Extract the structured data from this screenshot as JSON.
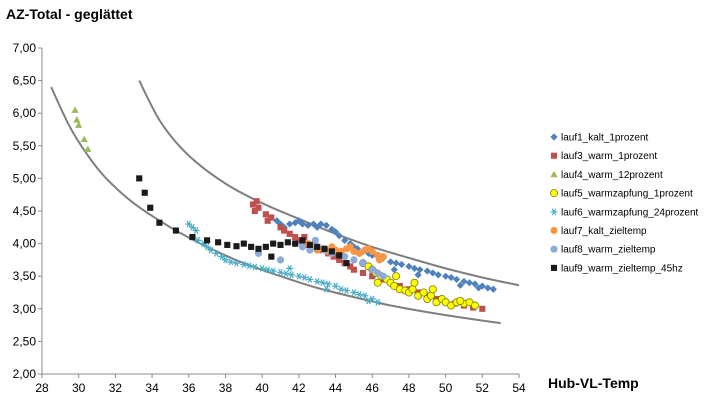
{
  "chart_data": {
    "type": "scatter",
    "title": "",
    "ylabel": "AZ-Total - geglättet",
    "xlabel": "Hub-VL-Temp",
    "xlim": [
      28,
      54
    ],
    "ylim": [
      2.0,
      7.0
    ],
    "x_ticks": [
      "28",
      "30",
      "32",
      "34",
      "36",
      "38",
      "40",
      "42",
      "44",
      "46",
      "48",
      "50",
      "52",
      "54"
    ],
    "y_ticks": [
      "2,00",
      "2,50",
      "3,00",
      "3,50",
      "4,00",
      "4,50",
      "5,00",
      "5,50",
      "6,00",
      "6,50",
      "7,00"
    ],
    "grid": false,
    "legend_position": "right",
    "series": [
      {
        "name": "lauf1_kalt_1prozent",
        "marker": "diamond",
        "color": "#4f81bd",
        "points": [
          [
            40.8,
            4.35
          ],
          [
            41.0,
            4.3
          ],
          [
            41.2,
            4.25
          ],
          [
            41.5,
            4.3
          ],
          [
            41.8,
            4.32
          ],
          [
            42.0,
            4.35
          ],
          [
            42.2,
            4.3
          ],
          [
            42.5,
            4.28
          ],
          [
            42.8,
            4.3
          ],
          [
            43.0,
            4.25
          ],
          [
            43.2,
            4.3
          ],
          [
            43.5,
            4.28
          ],
          [
            43.8,
            4.22
          ],
          [
            44.0,
            4.18
          ],
          [
            44.2,
            4.12
          ],
          [
            44.5,
            4.05
          ],
          [
            44.8,
            4.0
          ],
          [
            45.0,
            3.95
          ],
          [
            45.2,
            3.92
          ],
          [
            45.5,
            3.88
          ],
          [
            45.8,
            3.85
          ],
          [
            46.0,
            3.82
          ],
          [
            46.3,
            3.8
          ],
          [
            46.6,
            3.78
          ],
          [
            47.0,
            3.72
          ],
          [
            47.3,
            3.7
          ],
          [
            47.6,
            3.68
          ],
          [
            48.0,
            3.65
          ],
          [
            48.3,
            3.62
          ],
          [
            48.6,
            3.6
          ],
          [
            49.0,
            3.58
          ],
          [
            49.3,
            3.55
          ],
          [
            49.6,
            3.52
          ],
          [
            50.0,
            3.5
          ],
          [
            50.3,
            3.48
          ],
          [
            50.6,
            3.45
          ],
          [
            51.0,
            3.42
          ],
          [
            51.3,
            3.4
          ],
          [
            51.6,
            3.38
          ],
          [
            52.0,
            3.35
          ],
          [
            52.3,
            3.32
          ],
          [
            52.6,
            3.3
          ],
          [
            47.2,
            3.6
          ],
          [
            48.5,
            3.52
          ],
          [
            50.8,
            3.36
          ],
          [
            51.8,
            3.32
          ]
        ]
      },
      {
        "name": "lauf3_warm_1prozent",
        "marker": "square",
        "color": "#c0504d",
        "points": [
          [
            39.5,
            4.6
          ],
          [
            39.7,
            4.65
          ],
          [
            39.8,
            4.55
          ],
          [
            39.6,
            4.5
          ],
          [
            40.2,
            4.45
          ],
          [
            40.3,
            4.35
          ],
          [
            40.5,
            4.4
          ],
          [
            41.2,
            4.2
          ],
          [
            41.5,
            4.15
          ],
          [
            41.8,
            4.1
          ],
          [
            42.0,
            4.05
          ],
          [
            42.2,
            4.0
          ],
          [
            42.5,
            3.98
          ],
          [
            42.8,
            3.95
          ],
          [
            43.0,
            3.92
          ],
          [
            43.3,
            3.9
          ],
          [
            43.6,
            3.85
          ],
          [
            43.9,
            3.8
          ],
          [
            44.2,
            3.75
          ],
          [
            44.5,
            3.7
          ],
          [
            44.8,
            3.65
          ],
          [
            45.0,
            3.6
          ],
          [
            45.5,
            3.55
          ],
          [
            46.0,
            3.5
          ],
          [
            46.5,
            3.45
          ],
          [
            47.0,
            3.4
          ],
          [
            47.5,
            3.35
          ],
          [
            48.0,
            3.3
          ],
          [
            48.5,
            3.25
          ],
          [
            49.0,
            3.2
          ],
          [
            49.5,
            3.15
          ],
          [
            50.0,
            3.1
          ],
          [
            50.5,
            3.08
          ],
          [
            51.0,
            3.05
          ],
          [
            51.5,
            3.02
          ],
          [
            52.0,
            3.0
          ],
          [
            41.0,
            4.25
          ],
          [
            42.3,
            4.1
          ]
        ]
      },
      {
        "name": "lauf4_warm_12prozent",
        "marker": "triangle",
        "color": "#9bbb59",
        "points": [
          [
            29.8,
            6.05
          ],
          [
            29.9,
            5.9
          ],
          [
            30.0,
            5.82
          ],
          [
            30.3,
            5.6
          ],
          [
            30.5,
            5.45
          ]
        ]
      },
      {
        "name": "lauf5_warmzapfung_1prozent",
        "marker": "circle",
        "color": "#ffff00",
        "points": [
          [
            45.5,
            3.7
          ],
          [
            45.8,
            3.65
          ],
          [
            46.0,
            3.6
          ],
          [
            46.2,
            3.55
          ],
          [
            46.5,
            3.5
          ],
          [
            46.8,
            3.45
          ],
          [
            47.0,
            3.4
          ],
          [
            47.2,
            3.35
          ],
          [
            47.5,
            3.3
          ],
          [
            47.8,
            3.28
          ],
          [
            48.0,
            3.25
          ],
          [
            48.2,
            3.3
          ],
          [
            48.5,
            3.2
          ],
          [
            48.8,
            3.25
          ],
          [
            49.0,
            3.15
          ],
          [
            49.2,
            3.2
          ],
          [
            49.5,
            3.1
          ],
          [
            49.8,
            3.15
          ],
          [
            50.0,
            3.1
          ],
          [
            50.3,
            3.05
          ],
          [
            50.6,
            3.1
          ],
          [
            51.0,
            3.08
          ],
          [
            51.3,
            3.1
          ],
          [
            51.6,
            3.05
          ],
          [
            46.3,
            3.4
          ],
          [
            47.3,
            3.5
          ],
          [
            48.3,
            3.4
          ],
          [
            49.3,
            3.3
          ],
          [
            50.8,
            3.12
          ]
        ]
      },
      {
        "name": "lauf6_warmzapfung_24prozent",
        "marker": "star",
        "color": "#4bacc6",
        "points": [
          [
            36.0,
            4.3
          ],
          [
            36.2,
            4.25
          ],
          [
            36.4,
            4.2
          ],
          [
            36.5,
            4.05
          ],
          [
            36.8,
            4.0
          ],
          [
            37.0,
            3.95
          ],
          [
            37.2,
            3.9
          ],
          [
            37.5,
            3.85
          ],
          [
            37.8,
            3.8
          ],
          [
            38.0,
            3.75
          ],
          [
            38.3,
            3.72
          ],
          [
            38.6,
            3.7
          ],
          [
            39.0,
            3.68
          ],
          [
            39.3,
            3.66
          ],
          [
            39.6,
            3.64
          ],
          [
            40.0,
            3.62
          ],
          [
            40.3,
            3.6
          ],
          [
            40.6,
            3.58
          ],
          [
            41.0,
            3.56
          ],
          [
            41.3,
            3.54
          ],
          [
            41.6,
            3.52
          ],
          [
            42.0,
            3.5
          ],
          [
            42.3,
            3.48
          ],
          [
            42.6,
            3.45
          ],
          [
            43.0,
            3.42
          ],
          [
            43.3,
            3.4
          ],
          [
            43.6,
            3.38
          ],
          [
            44.0,
            3.35
          ],
          [
            44.3,
            3.3
          ],
          [
            44.6,
            3.28
          ],
          [
            45.0,
            3.25
          ],
          [
            45.3,
            3.22
          ],
          [
            45.6,
            3.2
          ],
          [
            46.0,
            3.15
          ],
          [
            46.3,
            3.1
          ],
          [
            41.5,
            3.62
          ],
          [
            43.5,
            3.3
          ],
          [
            45.8,
            3.12
          ]
        ]
      },
      {
        "name": "lauf7_kalt_zieltemp",
        "marker": "circle",
        "color": "#f79646",
        "points": [
          [
            42.5,
            4.0
          ],
          [
            42.8,
            3.95
          ],
          [
            43.0,
            3.9
          ],
          [
            43.3,
            3.92
          ],
          [
            43.6,
            3.88
          ],
          [
            44.0,
            3.9
          ],
          [
            44.3,
            3.88
          ],
          [
            44.6,
            3.92
          ],
          [
            45.0,
            3.88
          ],
          [
            45.3,
            3.85
          ],
          [
            45.6,
            3.9
          ],
          [
            46.0,
            3.88
          ],
          [
            46.3,
            3.82
          ],
          [
            46.6,
            3.8
          ],
          [
            43.8,
            3.95
          ],
          [
            44.8,
            3.95
          ],
          [
            45.8,
            3.92
          ],
          [
            46.4,
            3.75
          ]
        ]
      },
      {
        "name": "lauf8_warm_zieltemp",
        "marker": "circle",
        "color": "#8eaadb",
        "points": [
          [
            39.8,
            3.85
          ],
          [
            41.0,
            3.75
          ],
          [
            41.8,
            4.0
          ],
          [
            42.2,
            3.95
          ],
          [
            42.6,
            3.9
          ],
          [
            43.0,
            3.95
          ],
          [
            43.4,
            3.9
          ],
          [
            43.8,
            3.85
          ],
          [
            44.5,
            3.8
          ],
          [
            45.0,
            3.75
          ],
          [
            45.5,
            3.7
          ],
          [
            46.0,
            3.6
          ],
          [
            46.3,
            3.55
          ],
          [
            46.6,
            3.5
          ],
          [
            42.9,
            4.05
          ]
        ]
      },
      {
        "name": "lauf9_warm_zieltemp_45hz",
        "marker": "square",
        "color": "#1a1a1a",
        "points": [
          [
            33.3,
            5.0
          ],
          [
            33.6,
            4.78
          ],
          [
            33.9,
            4.55
          ],
          [
            34.4,
            4.32
          ],
          [
            35.3,
            4.2
          ],
          [
            36.2,
            4.1
          ],
          [
            37.0,
            4.05
          ],
          [
            37.6,
            4.02
          ],
          [
            38.1,
            3.98
          ],
          [
            38.6,
            3.96
          ],
          [
            39.0,
            4.0
          ],
          [
            39.4,
            3.95
          ],
          [
            39.8,
            3.92
          ],
          [
            40.2,
            3.95
          ],
          [
            40.6,
            4.0
          ],
          [
            41.0,
            3.98
          ],
          [
            41.4,
            4.02
          ],
          [
            41.8,
            4.0
          ],
          [
            42.2,
            4.05
          ],
          [
            42.6,
            3.98
          ],
          [
            43.0,
            3.95
          ],
          [
            43.4,
            3.92
          ],
          [
            43.8,
            3.88
          ],
          [
            44.2,
            3.82
          ],
          [
            44.6,
            3.7
          ],
          [
            40.5,
            3.8
          ]
        ]
      }
    ],
    "envelope_curves": [
      {
        "points": [
          [
            28.5,
            6.4
          ],
          [
            29.5,
            5.8
          ],
          [
            30.5,
            5.35
          ],
          [
            31.5,
            5.0
          ],
          [
            33,
            4.62
          ],
          [
            35,
            4.25
          ],
          [
            37,
            3.95
          ],
          [
            39,
            3.7
          ],
          [
            41,
            3.5
          ],
          [
            43,
            3.32
          ],
          [
            45,
            3.18
          ],
          [
            47,
            3.05
          ],
          [
            49,
            2.95
          ],
          [
            51,
            2.86
          ],
          [
            53,
            2.78
          ]
        ]
      },
      {
        "points": [
          [
            33.3,
            6.5
          ],
          [
            34.5,
            5.85
          ],
          [
            36,
            5.35
          ],
          [
            38,
            4.92
          ],
          [
            40,
            4.62
          ],
          [
            42,
            4.38
          ],
          [
            44,
            4.15
          ],
          [
            46,
            3.95
          ],
          [
            48,
            3.78
          ],
          [
            50,
            3.62
          ],
          [
            52,
            3.48
          ],
          [
            54,
            3.36
          ]
        ]
      }
    ]
  }
}
